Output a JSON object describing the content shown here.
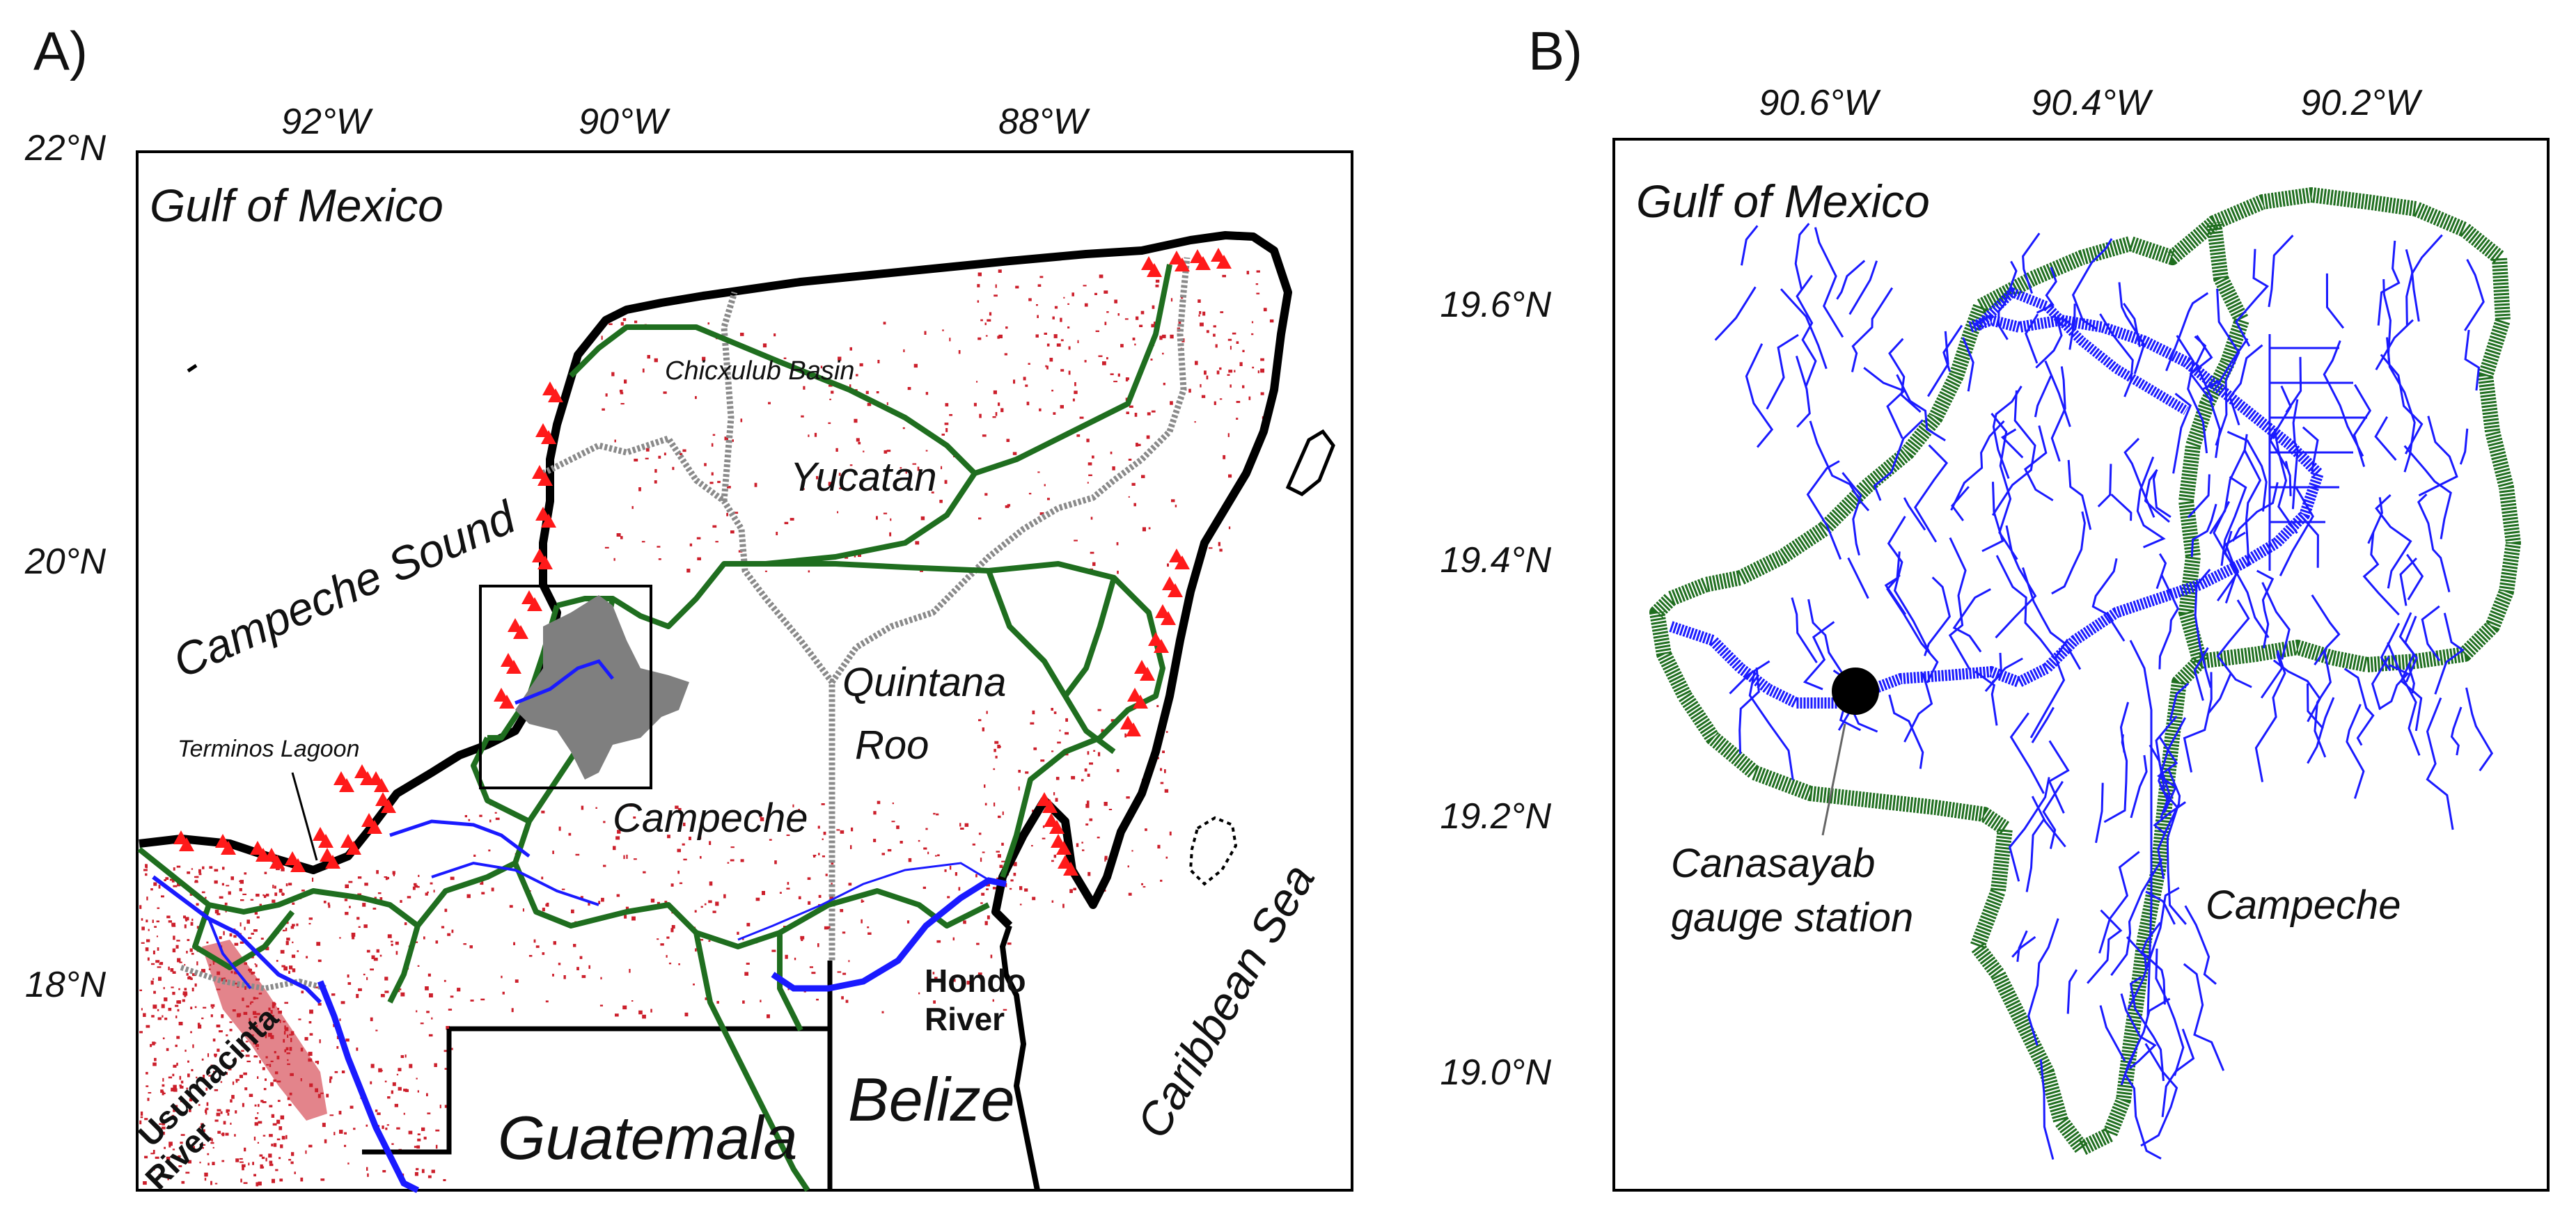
{
  "panel_a": {
    "letter": "A)",
    "lon_ticks": [
      "92°W",
      "90°W",
      "88°W"
    ],
    "lat_ticks": [
      "22°N",
      "20°N",
      "18°N"
    ],
    "labels": {
      "gulf": "Gulf of Mexico",
      "chicxulub": "Chicxulub Basin",
      "yucatan": "Yucatan",
      "campeche_sound": "Campeche Sound",
      "quintana_1": "Quintana",
      "quintana_2": "Roo",
      "terminos": "Terminos Lagoon",
      "campeche": "Campeche",
      "hondo_1": "Hondo",
      "hondo_2": "River",
      "caribbean": "Caribbean Sea",
      "usumacinta_1": "Usumacinta",
      "usumacinta_2": "River",
      "guatemala": "Guatemala",
      "belize": "Belize"
    }
  },
  "panel_b": {
    "letter": "B)",
    "lon_ticks": [
      "90.6°W",
      "90.4°W",
      "90.2°W"
    ],
    "lat_ticks": [
      "19.6°N",
      "19.4°N",
      "19.2°N",
      "19.0°N"
    ],
    "labels": {
      "gulf": "Gulf of Mexico",
      "station_1": "Canasayab",
      "station_2": "gauge station",
      "campeche": "Campeche"
    }
  },
  "colors": {
    "coast": "#000000",
    "state_border": "#1f6e1f",
    "river": "#1a1aff",
    "wetland": "#cc1f2b",
    "marker": "#ff1a1a",
    "aquifer": "#7f7f7f",
    "state_line_grey": "#8a8a8a"
  }
}
